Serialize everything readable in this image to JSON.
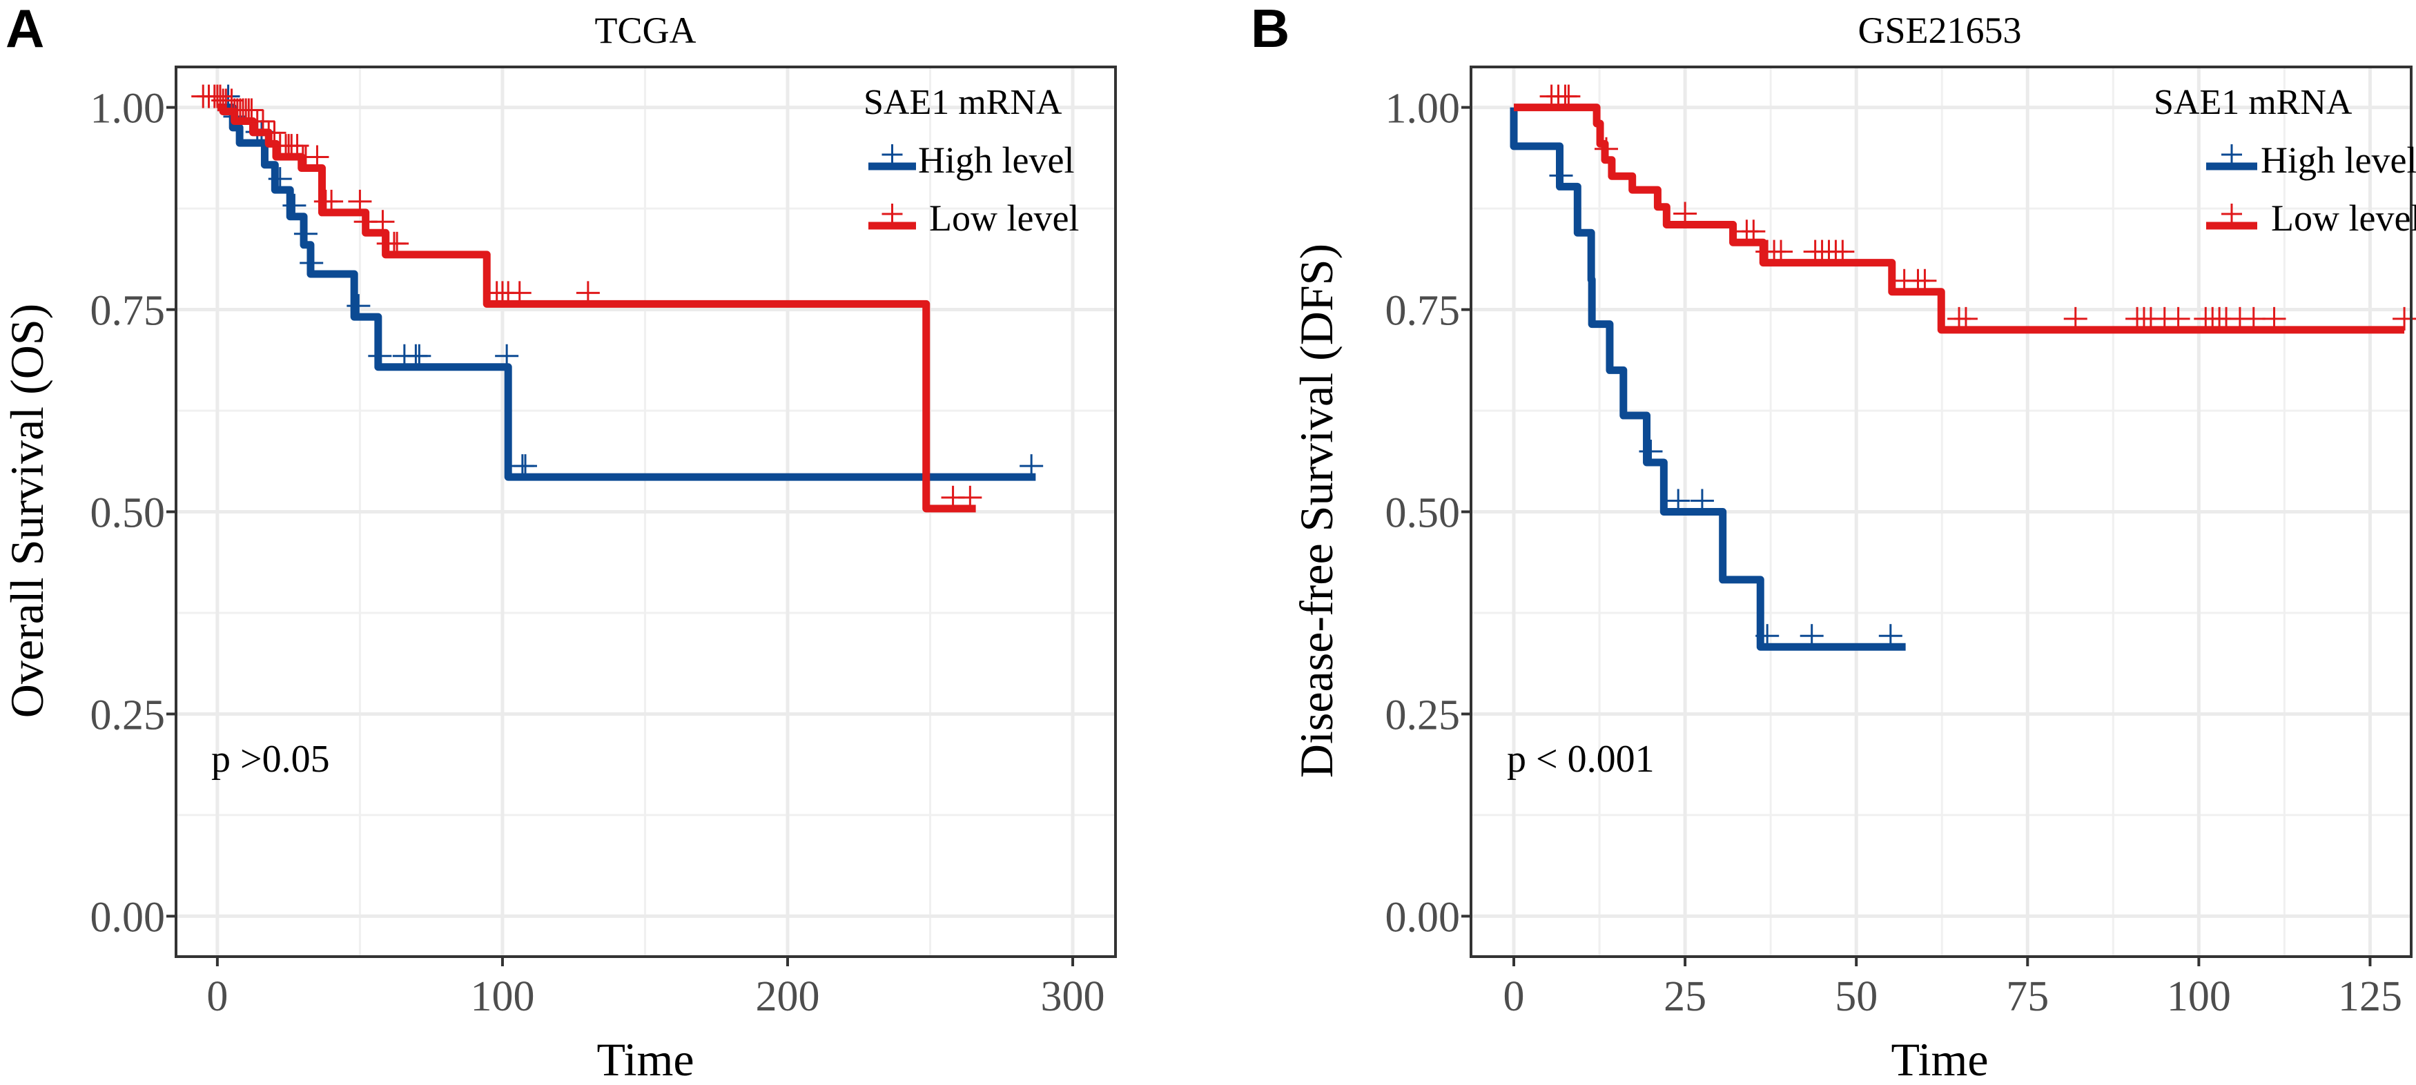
{
  "chart_data": [
    {
      "panel": "A",
      "type": "line",
      "subtype": "kaplan-meier",
      "title": "TCGA",
      "xlabel": "Time",
      "ylabel": "Overall Survival (OS)",
      "xlim": [
        -14.5,
        315
      ],
      "ylim": [
        -0.05,
        1.05
      ],
      "xticks": [
        0,
        100,
        200,
        300
      ],
      "xtick_labels": [
        "0",
        "100",
        "200",
        "300"
      ],
      "yticks": [
        0,
        0.25,
        0.5,
        0.75,
        1
      ],
      "ytick_labels": [
        "0.00",
        "0.25",
        "0.50",
        "0.75",
        "1.00"
      ],
      "grid": true,
      "legend": {
        "title": "SAE1 mRNA",
        "position": "top-right"
      },
      "annotation": "p >0.05",
      "series": [
        {
          "name": "High level",
          "color": "#0c4a93",
          "steps": [
            [
              0,
              1
            ],
            [
              5.4,
              0.975
            ],
            [
              7.8,
              0.956
            ],
            [
              16.6,
              0.929
            ],
            [
              20.2,
              0.898
            ],
            [
              25.5,
              0.865
            ],
            [
              30.3,
              0.83
            ],
            [
              32.7,
              0.794
            ],
            [
              48,
              0.741
            ],
            [
              56.4,
              0.679
            ],
            [
              102,
              0.543
            ]
          ],
          "end": 287,
          "censored": [
            3.8,
            6.2,
            14,
            15.5,
            22,
            27,
            31,
            33,
            49.5,
            57,
            65.6,
            69.6,
            70.8,
            101.5,
            107,
            108,
            285.5
          ]
        },
        {
          "name": "Low level",
          "color": "#e0191b",
          "steps": [
            [
              0,
              1
            ],
            [
              2,
              0.995
            ],
            [
              6,
              0.983
            ],
            [
              12.5,
              0.969
            ],
            [
              18,
              0.955
            ],
            [
              20.6,
              0.939
            ],
            [
              29.5,
              0.925
            ],
            [
              36.7,
              0.87
            ],
            [
              52,
              0.845
            ],
            [
              59,
              0.818
            ],
            [
              94.5,
              0.757
            ],
            [
              248.6,
              0.504
            ]
          ],
          "end": 266,
          "censored": [
            -5,
            -3,
            -1,
            0,
            1,
            2,
            3,
            5,
            6,
            7,
            8,
            9,
            10,
            11,
            12,
            14,
            16,
            18,
            20,
            22,
            24,
            25,
            26,
            28,
            30,
            31,
            35,
            38,
            40,
            50,
            52,
            58,
            60,
            62,
            63,
            98,
            100,
            102,
            106,
            130,
            258,
            264
          ]
        }
      ]
    },
    {
      "panel": "B",
      "type": "line",
      "subtype": "kaplan-meier",
      "title": "GSE21653",
      "xlabel": "Time",
      "ylabel": "Disease-free Survival (DFS)",
      "xlim": [
        -6.25,
        131
      ],
      "ylim": [
        -0.05,
        1.05
      ],
      "xticks": [
        0,
        25,
        50,
        75,
        100,
        125
      ],
      "xtick_labels": [
        "0",
        "25",
        "50",
        "75",
        "100",
        "125"
      ],
      "yticks": [
        0,
        0.25,
        0.5,
        0.75,
        1
      ],
      "ytick_labels": [
        "0.00",
        "0.25",
        "0.50",
        "0.75",
        "1.00"
      ],
      "grid": true,
      "legend": {
        "title": "SAE1 mRNA",
        "position": "top-right"
      },
      "annotation": "p < 0.001",
      "series": [
        {
          "name": "High level",
          "color": "#0c4a93",
          "steps": [
            [
              0,
              1
            ],
            [
              0,
              0.952
            ],
            [
              6.7,
              0.902
            ],
            [
              9.3,
              0.845
            ],
            [
              11.3,
              0.787
            ],
            [
              11.4,
              0.732
            ],
            [
              14,
              0.675
            ],
            [
              16,
              0.619
            ],
            [
              19.4,
              0.561
            ],
            [
              21.9,
              0.5
            ],
            [
              30.5,
              0.416
            ],
            [
              36,
              0.333
            ]
          ],
          "end": 57.2,
          "censored": [
            6.9,
            20,
            24,
            27.5,
            37,
            43.5,
            55
          ]
        },
        {
          "name": "Low level",
          "color": "#e0191b",
          "steps": [
            [
              0,
              1
            ],
            [
              12.1,
              0.98
            ],
            [
              12.6,
              0.955
            ],
            [
              13.3,
              0.935
            ],
            [
              14.3,
              0.915
            ],
            [
              17.3,
              0.898
            ],
            [
              21,
              0.877
            ],
            [
              22.3,
              0.855
            ],
            [
              32,
              0.833
            ],
            [
              36.4,
              0.808
            ],
            [
              55.2,
              0.772
            ],
            [
              62.4,
              0.725
            ]
          ],
          "end": 130,
          "censored": [
            5.5,
            6.5,
            7.5,
            8,
            13.5,
            25,
            34,
            35,
            37,
            38,
            39,
            44,
            45,
            46,
            47,
            48,
            57,
            59,
            60,
            65,
            66,
            82,
            91,
            92,
            93,
            95,
            97,
            101,
            102,
            103,
            104,
            106,
            108,
            111,
            130
          ]
        }
      ]
    }
  ]
}
